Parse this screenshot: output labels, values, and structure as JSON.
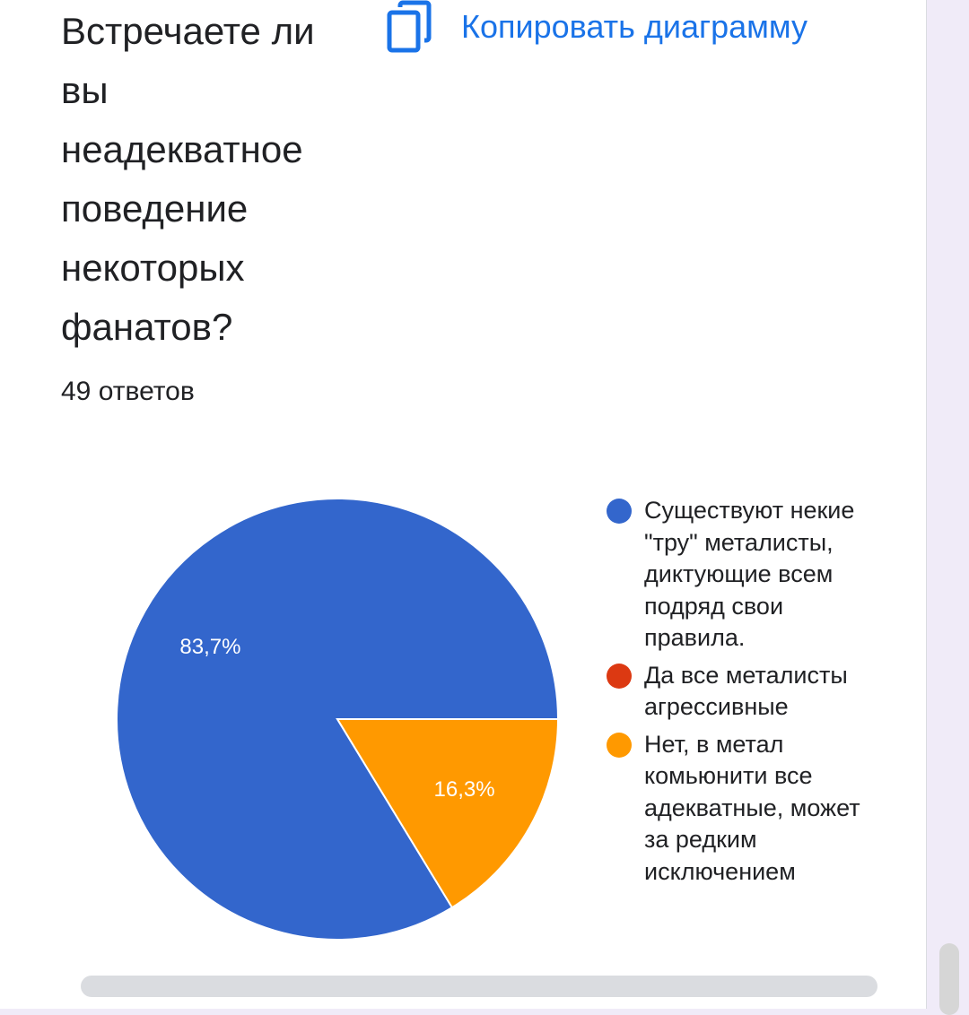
{
  "question": {
    "title": "Встречаете ли\nвы\nнеадекватное\nповедение\nнекоторых\nфанатов?",
    "responses": "49 ответов"
  },
  "toolbar": {
    "copy_label": "Копировать диаграмму",
    "copy_icon": "copy-icon"
  },
  "colors": {
    "accent": "#1a73e8",
    "blue": "#3366cc",
    "red": "#dc3912",
    "orange": "#ff9900"
  },
  "chart_data": {
    "type": "pie",
    "categories": [
      "Существуют некие \"тру\" металисты, диктующие всем подряд свои правила.",
      "Да все металисты агрессивные",
      "Нет, в метал комьюнити все адекватные, может за редким исключением"
    ],
    "values": [
      83.7,
      0,
      16.3
    ],
    "labels": [
      "83,7%",
      "",
      "16,3%"
    ],
    "colors": [
      "#3366cc",
      "#dc3912",
      "#ff9900"
    ],
    "legend_position": "right"
  }
}
